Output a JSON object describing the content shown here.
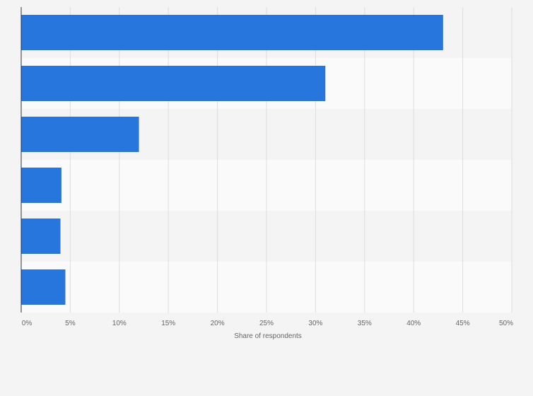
{
  "chart_data": {
    "type": "bar",
    "orientation": "horizontal",
    "title": "",
    "xlabel": "Share of respondents",
    "ylabel": "",
    "xlim": [
      0,
      50
    ],
    "x_ticks": [
      "0%",
      "5%",
      "10%",
      "15%",
      "20%",
      "25%",
      "30%",
      "35%",
      "40%",
      "45%",
      "50%"
    ],
    "x_tick_values": [
      0,
      5,
      10,
      15,
      20,
      25,
      30,
      35,
      40,
      45,
      50
    ],
    "categories": [
      "",
      "",
      "",
      "",
      "",
      ""
    ],
    "values": [
      43,
      31,
      12,
      4.1,
      4,
      4.5
    ],
    "grid": true,
    "legend": "none",
    "colors": {
      "bar": "#2776dd",
      "background": "#f4f4f4",
      "band_dark": "#f4f4f4",
      "band_light": "#fafafa",
      "grid": "#dddddd",
      "axis": "#333333",
      "text": "#666666"
    }
  }
}
